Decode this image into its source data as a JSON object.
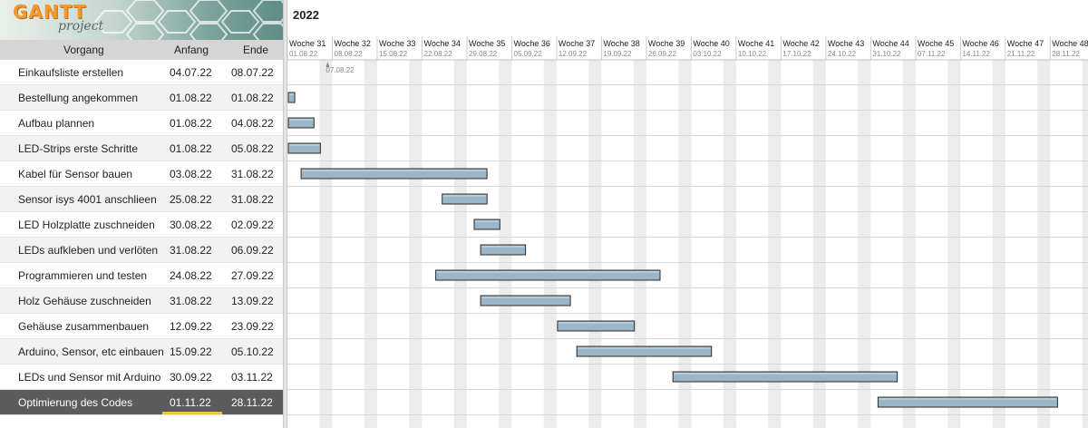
{
  "logo": {
    "word1": "GANTT",
    "word2": "project"
  },
  "table": {
    "headers": {
      "task": "Vorgang",
      "start": "Anfang",
      "end": "Ende"
    },
    "rows": [
      {
        "name": "Einkaufsliste erstellen",
        "start": "04.07.22",
        "end": "08.07.22"
      },
      {
        "name": "Bestellung angekommen",
        "start": "01.08.22",
        "end": "01.08.22"
      },
      {
        "name": "Aufbau plannen",
        "start": "01.08.22",
        "end": "04.08.22"
      },
      {
        "name": "LED-Strips erste Schritte",
        "start": "01.08.22",
        "end": "05.08.22"
      },
      {
        "name": "Kabel für Sensor bauen",
        "start": "03.08.22",
        "end": "31.08.22"
      },
      {
        "name": "Sensor isys 4001 anschlieen",
        "start": "25.08.22",
        "end": "31.08.22"
      },
      {
        "name": "LED Holzplatte zuschneiden",
        "start": "30.08.22",
        "end": "02.09.22"
      },
      {
        "name": "LEDs aufkleben und verlöten",
        "start": "31.08.22",
        "end": "06.09.22"
      },
      {
        "name": "Programmieren und testen",
        "start": "24.08.22",
        "end": "27.09.22"
      },
      {
        "name": "Holz Gehäuse zuschneiden",
        "start": "31.08.22",
        "end": "13.09.22"
      },
      {
        "name": "Gehäuse zusammenbauen",
        "start": "12.09.22",
        "end": "23.09.22"
      },
      {
        "name": "Arduino, Sensor, etc einbauen",
        "start": "15.09.22",
        "end": "05.10.22"
      },
      {
        "name": "LEDs und Sensor mit Arduino",
        "start": "30.09.22",
        "end": "03.11.22"
      },
      {
        "name": "Optimierung des Codes",
        "start": "01.11.22",
        "end": "28.11.22"
      }
    ],
    "selected_index": 13
  },
  "timeline": {
    "year": "2022",
    "weeks": [
      {
        "label": "Woche 31",
        "date": "01.08.22"
      },
      {
        "label": "Woche 32",
        "date": "08.08.22"
      },
      {
        "label": "Woche 33",
        "date": "15.08.22"
      },
      {
        "label": "Woche 34",
        "date": "22.08.22"
      },
      {
        "label": "Woche 35",
        "date": "29.08.22"
      },
      {
        "label": "Woche 36",
        "date": "05.09.22"
      },
      {
        "label": "Woche 37",
        "date": "12.09.22"
      },
      {
        "label": "Woche 38",
        "date": "19.09.22"
      },
      {
        "label": "Woche 39",
        "date": "26.09.22"
      },
      {
        "label": "Woche 40",
        "date": "03.10.22"
      },
      {
        "label": "Woche 41",
        "date": "10.10.22"
      },
      {
        "label": "Woche 42",
        "date": "17.10.22"
      },
      {
        "label": "Woche 43",
        "date": "24.10.22"
      },
      {
        "label": "Woche 44",
        "date": "31.10.22"
      },
      {
        "label": "Woche 45",
        "date": "07.11.22"
      },
      {
        "label": "Woche 46",
        "date": "14.11.22"
      },
      {
        "label": "Woche 47",
        "date": "21.11.22"
      },
      {
        "label": "Woche 48",
        "date": "28.11.22"
      }
    ],
    "marker_label": "07.08.22"
  },
  "colors": {
    "bar_fill": "#9bb6c8",
    "bar_stroke": "#2b2b2b",
    "weekend_shade": "#ececec",
    "selected_row": "#5c5c5c",
    "underline": "#f2c23c"
  }
}
